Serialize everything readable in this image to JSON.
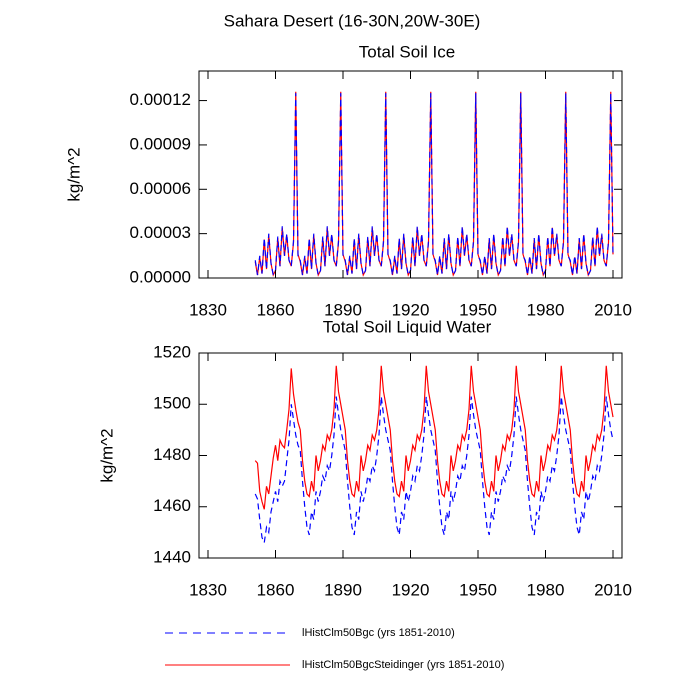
{
  "title": "Sahara Desert (16-30N,20W-30E)",
  "chart_data": [
    {
      "type": "line",
      "title": "Total Soil Ice",
      "ylabel": "kg/m^2",
      "x": [
        1851,
        1852,
        1853,
        1854,
        1855,
        1856,
        1857,
        1858,
        1859,
        1860,
        1861,
        1862,
        1863,
        1864,
        1865,
        1866,
        1867,
        1868,
        1869,
        1870,
        1871,
        1872,
        1873,
        1874,
        1875,
        1876,
        1877,
        1878,
        1879,
        1880,
        1881,
        1882,
        1883,
        1884,
        1885,
        1886,
        1887,
        1888,
        1889,
        1890,
        1891,
        1892,
        1893,
        1894,
        1895,
        1896,
        1897,
        1898,
        1899,
        1900,
        1901,
        1902,
        1903,
        1904,
        1905,
        1906,
        1907,
        1908,
        1909,
        1910,
        1911,
        1912,
        1913,
        1914,
        1915,
        1916,
        1917,
        1918,
        1919,
        1920,
        1921,
        1922,
        1923,
        1924,
        1925,
        1926,
        1927,
        1928,
        1929,
        1930,
        1931,
        1932,
        1933,
        1934,
        1935,
        1936,
        1937,
        1938,
        1939,
        1940,
        1941,
        1942,
        1943,
        1944,
        1945,
        1946,
        1947,
        1948,
        1949,
        1950,
        1951,
        1952,
        1953,
        1954,
        1955,
        1956,
        1957,
        1958,
        1959,
        1960,
        1961,
        1962,
        1963,
        1964,
        1965,
        1966,
        1967,
        1968,
        1969,
        1970,
        1971,
        1972,
        1973,
        1974,
        1975,
        1976,
        1977,
        1978,
        1979,
        1980,
        1981,
        1982,
        1983,
        1984,
        1985,
        1986,
        1987,
        1988,
        1989,
        1990,
        1991,
        1992,
        1993,
        1994,
        1995,
        1996,
        1997,
        1998,
        1999,
        2000,
        2001,
        2002,
        2003,
        2004,
        2005,
        2006,
        2007,
        2008,
        2009,
        2010
      ],
      "xlim": [
        1826,
        2014
      ],
      "xticks": [
        1830,
        1860,
        1890,
        1920,
        1950,
        1980,
        2010
      ],
      "ylim": [
        0,
        0.00014
      ],
      "yticks": [
        {
          "value": 0,
          "label": "0.00000"
        },
        {
          "value": 3e-05,
          "label": "0.00003"
        },
        {
          "value": 6e-05,
          "label": "0.00006"
        },
        {
          "value": 9e-05,
          "label": "0.00009"
        },
        {
          "value": 0.00012,
          "label": "0.00012"
        }
      ],
      "series": [
        {
          "color": "#ff0000",
          "line_style": "solid",
          "values": [
            1.1e-05,
            2e-06,
            1.4e-05,
            3e-06,
            2.6e-05,
            6e-06,
            2.9e-05,
            1e-05,
            2e-06,
            5e-06,
            2.7e-05,
            8e-06,
            3.4e-05,
            1.5e-05,
            2.9e-05,
            1.2e-05,
            8e-06,
            2.4e-05,
            0.000126,
            1.6e-05,
            1.1e-05,
            2e-06,
            1.4e-05,
            3e-06,
            2.6e-05,
            6e-06,
            2.9e-05,
            1e-05,
            2e-06,
            5e-06,
            2.7e-05,
            8e-06,
            3.4e-05,
            1.5e-05,
            2.9e-05,
            1.2e-05,
            8e-06,
            2.4e-05,
            0.000126,
            1.6e-05,
            1.1e-05,
            2e-06,
            1.4e-05,
            3e-06,
            2.6e-05,
            6e-06,
            2.9e-05,
            1e-05,
            2e-06,
            5e-06,
            2.7e-05,
            8e-06,
            3.4e-05,
            1.5e-05,
            2.9e-05,
            1.2e-05,
            8e-06,
            2.4e-05,
            0.000126,
            1.6e-05,
            1.1e-05,
            2e-06,
            1.4e-05,
            3e-06,
            2.6e-05,
            6e-06,
            2.9e-05,
            1e-05,
            2e-06,
            5e-06,
            2.7e-05,
            8e-06,
            3.4e-05,
            1.5e-05,
            2.9e-05,
            1.2e-05,
            8e-06,
            2.4e-05,
            0.000126,
            1.6e-05,
            1.1e-05,
            2e-06,
            1.4e-05,
            3e-06,
            2.6e-05,
            6e-06,
            2.9e-05,
            1e-05,
            2e-06,
            5e-06,
            2.7e-05,
            8e-06,
            3.4e-05,
            1.5e-05,
            2.9e-05,
            1.2e-05,
            8e-06,
            2.4e-05,
            0.000126,
            1.6e-05,
            1.1e-05,
            2e-06,
            1.4e-05,
            3e-06,
            2.6e-05,
            6e-06,
            2.9e-05,
            1e-05,
            2e-06,
            5e-06,
            2.7e-05,
            8e-06,
            3.4e-05,
            1.5e-05,
            2.9e-05,
            1.2e-05,
            8e-06,
            2.4e-05,
            0.000126,
            1.6e-05,
            1.1e-05,
            2e-06,
            1.4e-05,
            3e-06,
            2.6e-05,
            6e-06,
            2.9e-05,
            1e-05,
            2e-06,
            5e-06,
            2.7e-05,
            8e-06,
            3.4e-05,
            1.5e-05,
            2.9e-05,
            1.2e-05,
            8e-06,
            2.4e-05,
            0.000126,
            1.6e-05,
            1.1e-05,
            2e-06,
            1.4e-05,
            3e-06,
            2.6e-05,
            6e-06,
            2.9e-05,
            1e-05,
            2e-06,
            5e-06,
            2.7e-05,
            8e-06,
            3.4e-05,
            1.5e-05,
            2.9e-05,
            1.2e-05,
            8e-06,
            2.4e-05,
            0.000126,
            1.6e-05
          ]
        },
        {
          "color": "#0000ff",
          "line_style": "dashed",
          "values": [
            1.2e-05,
            2e-06,
            1.5e-05,
            3e-06,
            2.7e-05,
            6e-06,
            3e-05,
            1e-05,
            2e-06,
            5e-06,
            2.8e-05,
            8e-06,
            3.5e-05,
            1.5e-05,
            3e-05,
            1.2e-05,
            8e-06,
            2.5e-05,
            0.000125,
            1.5e-05,
            1.2e-05,
            2e-06,
            1.5e-05,
            3e-06,
            2.7e-05,
            6e-06,
            3e-05,
            1e-05,
            2e-06,
            5e-06,
            2.8e-05,
            8e-06,
            3.5e-05,
            1.5e-05,
            3e-05,
            1.2e-05,
            8e-06,
            2.5e-05,
            0.000125,
            1.5e-05,
            1.2e-05,
            2e-06,
            1.5e-05,
            3e-06,
            2.7e-05,
            6e-06,
            3e-05,
            1e-05,
            2e-06,
            5e-06,
            2.8e-05,
            8e-06,
            3.5e-05,
            1.5e-05,
            3e-05,
            1.2e-05,
            8e-06,
            2.5e-05,
            0.000125,
            1.5e-05,
            1.2e-05,
            2e-06,
            1.5e-05,
            3e-06,
            2.7e-05,
            6e-06,
            3e-05,
            1e-05,
            2e-06,
            5e-06,
            2.8e-05,
            8e-06,
            3.5e-05,
            1.5e-05,
            3e-05,
            1.2e-05,
            8e-06,
            2.5e-05,
            0.000125,
            1.5e-05,
            1.2e-05,
            2e-06,
            1.5e-05,
            3e-06,
            2.7e-05,
            6e-06,
            3e-05,
            1e-05,
            2e-06,
            5e-06,
            2.8e-05,
            8e-06,
            3.5e-05,
            1.5e-05,
            3e-05,
            1.2e-05,
            8e-06,
            2.5e-05,
            0.000125,
            1.5e-05,
            1.2e-05,
            2e-06,
            1.5e-05,
            3e-06,
            2.7e-05,
            6e-06,
            3e-05,
            1e-05,
            2e-06,
            5e-06,
            2.8e-05,
            8e-06,
            3.5e-05,
            1.5e-05,
            3e-05,
            1.2e-05,
            8e-06,
            2.5e-05,
            0.000125,
            1.5e-05,
            1.2e-05,
            2e-06,
            1.5e-05,
            3e-06,
            2.7e-05,
            6e-06,
            3e-05,
            1e-05,
            2e-06,
            5e-06,
            2.8e-05,
            8e-06,
            3.5e-05,
            1.5e-05,
            3e-05,
            1.2e-05,
            8e-06,
            2.5e-05,
            0.000125,
            1.5e-05,
            1.2e-05,
            2e-06,
            1.5e-05,
            3e-06,
            2.7e-05,
            6e-06,
            3e-05,
            1e-05,
            2e-06,
            5e-06,
            2.8e-05,
            8e-06,
            3.5e-05,
            1.5e-05,
            3e-05,
            1.2e-05,
            8e-06,
            2.5e-05,
            0.000125,
            1.5e-05
          ]
        }
      ]
    },
    {
      "type": "line",
      "title": "Total Soil Liquid Water",
      "ylabel": "kg/m^2",
      "x": [
        1851,
        1852,
        1853,
        1854,
        1855,
        1856,
        1857,
        1858,
        1859,
        1860,
        1861,
        1862,
        1863,
        1864,
        1865,
        1866,
        1867,
        1868,
        1869,
        1870,
        1871,
        1872,
        1873,
        1874,
        1875,
        1876,
        1877,
        1878,
        1879,
        1880,
        1881,
        1882,
        1883,
        1884,
        1885,
        1886,
        1887,
        1888,
        1889,
        1890,
        1891,
        1892,
        1893,
        1894,
        1895,
        1896,
        1897,
        1898,
        1899,
        1900,
        1901,
        1902,
        1903,
        1904,
        1905,
        1906,
        1907,
        1908,
        1909,
        1910,
        1911,
        1912,
        1913,
        1914,
        1915,
        1916,
        1917,
        1918,
        1919,
        1920,
        1921,
        1922,
        1923,
        1924,
        1925,
        1926,
        1927,
        1928,
        1929,
        1930,
        1931,
        1932,
        1933,
        1934,
        1935,
        1936,
        1937,
        1938,
        1939,
        1940,
        1941,
        1942,
        1943,
        1944,
        1945,
        1946,
        1947,
        1948,
        1949,
        1950,
        1951,
        1952,
        1953,
        1954,
        1955,
        1956,
        1957,
        1958,
        1959,
        1960,
        1961,
        1962,
        1963,
        1964,
        1965,
        1966,
        1967,
        1968,
        1969,
        1970,
        1971,
        1972,
        1973,
        1974,
        1975,
        1976,
        1977,
        1978,
        1979,
        1980,
        1981,
        1982,
        1983,
        1984,
        1985,
        1986,
        1987,
        1988,
        1989,
        1990,
        1991,
        1992,
        1993,
        1994,
        1995,
        1996,
        1997,
        1998,
        1999,
        2000,
        2001,
        2002,
        2003,
        2004,
        2005,
        2006,
        2007,
        2008,
        2009,
        2010
      ],
      "xlim": [
        1826,
        2014
      ],
      "xticks": [
        1830,
        1860,
        1890,
        1920,
        1950,
        1980,
        2010
      ],
      "ylim": [
        1440,
        1520
      ],
      "yticks": [
        1440,
        1460,
        1480,
        1500,
        1520
      ],
      "series": [
        {
          "name": "lHistClm50Bgc (yrs 1851-2010)",
          "color": "#0000ff",
          "line_style": "dashed",
          "values": [
            1465,
            1463,
            1455,
            1448,
            1446,
            1452,
            1450,
            1458,
            1462,
            1466,
            1462,
            1470,
            1468,
            1470,
            1478,
            1486,
            1500,
            1494,
            1488,
            1484,
            1482,
            1470,
            1460,
            1452,
            1449,
            1458,
            1455,
            1466,
            1462,
            1466,
            1472,
            1470,
            1476,
            1474,
            1480,
            1488,
            1503,
            1496,
            1490,
            1486,
            1482,
            1470,
            1460,
            1452,
            1449,
            1458,
            1455,
            1466,
            1462,
            1466,
            1472,
            1470,
            1476,
            1474,
            1480,
            1488,
            1503,
            1496,
            1490,
            1486,
            1482,
            1470,
            1460,
            1452,
            1449,
            1458,
            1455,
            1466,
            1462,
            1466,
            1472,
            1470,
            1476,
            1474,
            1480,
            1488,
            1503,
            1496,
            1490,
            1486,
            1482,
            1470,
            1460,
            1452,
            1449,
            1458,
            1455,
            1466,
            1462,
            1466,
            1472,
            1470,
            1476,
            1474,
            1480,
            1488,
            1503,
            1496,
            1490,
            1486,
            1482,
            1470,
            1460,
            1452,
            1449,
            1458,
            1455,
            1466,
            1462,
            1466,
            1472,
            1470,
            1476,
            1474,
            1480,
            1488,
            1503,
            1496,
            1490,
            1486,
            1482,
            1470,
            1460,
            1452,
            1449,
            1458,
            1455,
            1466,
            1462,
            1466,
            1472,
            1470,
            1476,
            1474,
            1480,
            1488,
            1503,
            1496,
            1490,
            1486,
            1482,
            1470,
            1460,
            1452,
            1449,
            1458,
            1455,
            1466,
            1462,
            1466,
            1472,
            1470,
            1476,
            1474,
            1480,
            1488,
            1503,
            1496,
            1490,
            1486
          ]
        },
        {
          "name": "lHistClm50BgcSteidinger (yrs 1851-2010)",
          "color": "#ff0000",
          "line_style": "solid",
          "values": [
            1478,
            1477,
            1466,
            1462,
            1459,
            1468,
            1465,
            1472,
            1479,
            1484,
            1478,
            1486,
            1484,
            1483,
            1490,
            1498,
            1514,
            1504,
            1498,
            1493,
            1490,
            1478,
            1470,
            1465,
            1464,
            1470,
            1466,
            1480,
            1474,
            1478,
            1484,
            1482,
            1488,
            1486,
            1490,
            1498,
            1515,
            1505,
            1500,
            1495,
            1490,
            1478,
            1470,
            1465,
            1464,
            1470,
            1466,
            1480,
            1474,
            1478,
            1484,
            1482,
            1488,
            1486,
            1490,
            1498,
            1515,
            1505,
            1500,
            1495,
            1490,
            1478,
            1470,
            1465,
            1464,
            1470,
            1466,
            1480,
            1474,
            1478,
            1484,
            1482,
            1488,
            1486,
            1490,
            1498,
            1515,
            1505,
            1500,
            1495,
            1490,
            1478,
            1470,
            1465,
            1464,
            1470,
            1466,
            1480,
            1474,
            1478,
            1484,
            1482,
            1488,
            1486,
            1490,
            1498,
            1515,
            1505,
            1500,
            1495,
            1490,
            1478,
            1470,
            1465,
            1464,
            1470,
            1466,
            1480,
            1474,
            1478,
            1484,
            1482,
            1488,
            1486,
            1490,
            1498,
            1515,
            1505,
            1500,
            1495,
            1490,
            1478,
            1470,
            1465,
            1464,
            1470,
            1466,
            1480,
            1474,
            1478,
            1484,
            1482,
            1488,
            1486,
            1490,
            1498,
            1515,
            1505,
            1500,
            1495,
            1490,
            1478,
            1470,
            1465,
            1464,
            1470,
            1466,
            1480,
            1474,
            1478,
            1484,
            1482,
            1488,
            1486,
            1490,
            1498,
            1515,
            1505,
            1500,
            1495
          ]
        }
      ]
    }
  ]
}
